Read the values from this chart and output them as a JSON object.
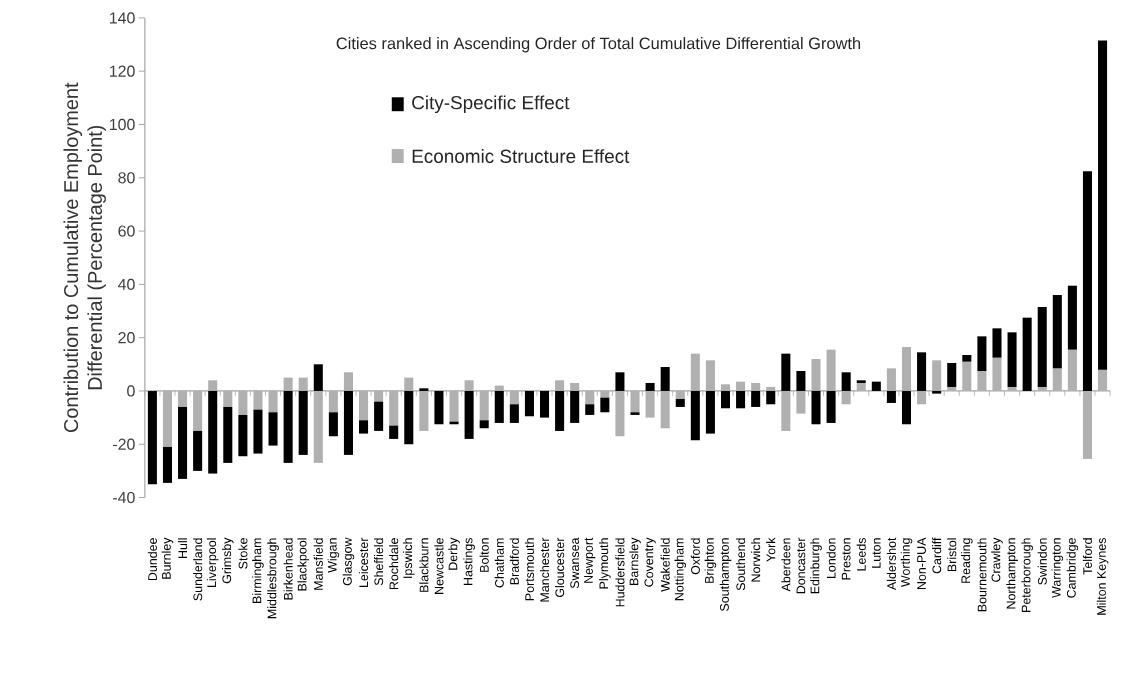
{
  "chart_data": {
    "type": "bar",
    "stacked": true,
    "title": "Cities ranked in Ascending Order of Total Cumulative Differential Growth",
    "ylabel": "Contribution to Cumulative Employment Differential (Percentage Point)",
    "categories": [
      "Dundee",
      "Burnley",
      "Hull",
      "Sunderland",
      "Liverpool",
      "Grimsby",
      "Stoke",
      "Birmingham",
      "Middlesbrough",
      "Birkenhead",
      "Blackpool",
      "Mansfield",
      "Wigan",
      "Glasgow",
      "Leicester",
      "Sheffield",
      "Rochdale",
      "Ipswich",
      "Blackburn",
      "Newcastle",
      "Derby",
      "Hastings",
      "Bolton",
      "Chatham",
      "Bradford",
      "Portsmouth",
      "Manchester",
      "Gloucester",
      "Swansea",
      "Newport",
      "Plymouth",
      "Huddersfield",
      "Barnsley",
      "Coventry",
      "Wakefield",
      "Nottingham",
      "Oxford",
      "Brighton",
      "Southampton",
      "Southend",
      "Norwich",
      "York",
      "Aberdeen",
      "Doncaster",
      "Edinburgh",
      "London",
      "Preston",
      "Leeds",
      "Luton",
      "Aldershot",
      "Worthing",
      "Non-PUA",
      "Cardiff",
      "Bristol",
      "Reading",
      "Bournemouth",
      "Crawley",
      "Northampton",
      "Peterborough",
      "Swindon",
      "Warrington",
      "Cambridge",
      "Telford",
      "Milton Keynes"
    ],
    "series": [
      {
        "name": "Economic Structure Effect",
        "color": "#b0b0b0",
        "values": [
          0,
          -21,
          -6,
          -15,
          4,
          -6,
          -9,
          -7,
          -8,
          5,
          5,
          -27,
          -8,
          7,
          -11,
          -4,
          -13,
          5,
          -15,
          0,
          -11.5,
          4,
          -11,
          2,
          -5,
          0,
          null,
          4,
          3,
          -5,
          -2.5,
          -17,
          -8,
          -10,
          -14,
          -3,
          14,
          11.5,
          2.5,
          3.5,
          3,
          1.5,
          -15,
          -8.5,
          12,
          15.5,
          -5,
          3,
          0,
          8.5,
          16.5,
          -5,
          11.5,
          1.5,
          11,
          7.5,
          12.5,
          1.5,
          0,
          1.5,
          8.5,
          15.5,
          -25.5,
          8
        ]
      },
      {
        "name": "City-Specific  Effect",
        "color": "#000000",
        "values": [
          -35,
          -13.5,
          -27,
          -15,
          -31,
          -21,
          -15.5,
          -16.5,
          -12.5,
          -27,
          -24,
          10,
          -9,
          -24,
          -5,
          -11,
          -5,
          -20,
          1,
          -12.5,
          -1,
          -18,
          -3,
          -12,
          -7,
          -9.5,
          -10,
          -15,
          -12,
          -4,
          -5.5,
          7,
          -1,
          3,
          9,
          -3,
          -18.5,
          -16,
          -6.5,
          -6.5,
          -6,
          -5,
          14,
          7.5,
          -12.5,
          -12,
          7,
          1,
          3.5,
          -4.5,
          -12.5,
          14.5,
          -1,
          9,
          2.5,
          13,
          11,
          20.5,
          27.5,
          30,
          27.5,
          24,
          82.5,
          123.5
        ]
      }
    ],
    "ylim": [
      -40,
      140
    ],
    "yticks": [
      -40,
      -20,
      0,
      20,
      40,
      60,
      80,
      100,
      120,
      140
    ],
    "legend": "top left"
  }
}
